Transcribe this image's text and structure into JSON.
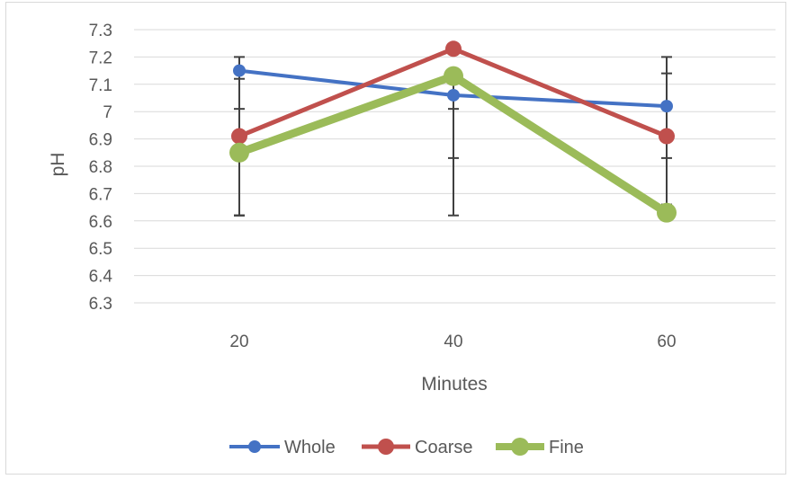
{
  "chart_data": {
    "type": "line",
    "xlabel": "Minutes",
    "ylabel": "pH",
    "categories": [
      "20",
      "40",
      "60"
    ],
    "ylim": [
      6.3,
      7.3
    ],
    "yticks": [
      "7.3",
      "7.2",
      "7.1",
      "7",
      "6.9",
      "6.8",
      "6.7",
      "6.6",
      "6.5",
      "6.4",
      "6.3"
    ],
    "grid": true,
    "legend_position": "bottom",
    "series": [
      {
        "name": "Whole",
        "color": "#4472c4",
        "values": [
          7.15,
          7.06,
          7.02
        ],
        "error_bars": [
          {
            "low": 6.62,
            "high": 7.2
          },
          {
            "low": 6.62,
            "high": 7.14
          },
          {
            "low": 6.83,
            "high": 7.2
          }
        ]
      },
      {
        "name": "Coarse",
        "color": "#c0504d",
        "values": [
          6.91,
          7.23,
          6.91
        ],
        "error_bars": [
          {
            "low": 6.62,
            "high": 7.12
          },
          {
            "low": 6.83,
            "high": 7.14
          },
          {
            "low": 6.66,
            "high": 7.14
          }
        ]
      },
      {
        "name": "Fine",
        "color": "#9bbb59",
        "values": [
          6.85,
          7.13,
          6.63
        ],
        "error_bars": [
          {
            "low": 6.62,
            "high": 7.01
          },
          {
            "low": 7.01,
            "high": 7.13
          },
          {
            "low": 6.63,
            "high": 6.63
          }
        ]
      }
    ]
  }
}
